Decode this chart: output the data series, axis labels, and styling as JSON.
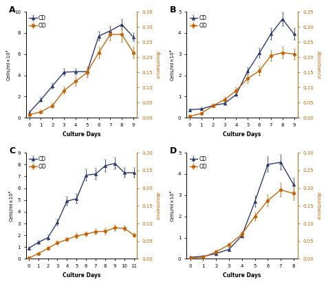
{
  "A": {
    "days": [
      0,
      1,
      2,
      3,
      4,
      5,
      6,
      7,
      8,
      9
    ],
    "cd": [
      0.5,
      1.7,
      3.0,
      4.3,
      4.35,
      4.35,
      7.7,
      8.2,
      8.8,
      7.6
    ],
    "cd_err": [
      0.15,
      0.2,
      0.25,
      0.3,
      0.3,
      0.3,
      0.4,
      0.45,
      0.5,
      0.4
    ],
    "od": [
      0.01,
      0.02,
      0.04,
      0.09,
      0.12,
      0.15,
      0.215,
      0.275,
      0.275,
      0.215
    ],
    "od_err": [
      0.005,
      0.005,
      0.008,
      0.012,
      0.015,
      0.018,
      0.02,
      0.02,
      0.025,
      0.02
    ],
    "ylim_cd": [
      0,
      10
    ],
    "yticks_cd": [
      0,
      2,
      4,
      6,
      8,
      10
    ],
    "ylim_od": [
      0,
      0.35
    ],
    "yticks_od": [
      0,
      0.05,
      0.1,
      0.15,
      0.2,
      0.25,
      0.3,
      0.35
    ],
    "xticks": [
      0,
      1,
      2,
      3,
      4,
      5,
      6,
      7,
      8,
      9
    ]
  },
  "B": {
    "days": [
      0,
      1,
      2,
      3,
      4,
      5,
      6,
      7,
      8,
      9
    ],
    "cd": [
      0.38,
      0.42,
      0.58,
      0.68,
      1.1,
      2.2,
      3.05,
      3.95,
      4.65,
      3.95
    ],
    "cd_err": [
      0.05,
      0.05,
      0.06,
      0.07,
      0.1,
      0.18,
      0.22,
      0.28,
      0.32,
      0.28
    ],
    "od": [
      0.005,
      0.015,
      0.04,
      0.06,
      0.09,
      0.13,
      0.155,
      0.205,
      0.215,
      0.21
    ],
    "od_err": [
      0.002,
      0.004,
      0.006,
      0.008,
      0.01,
      0.015,
      0.015,
      0.018,
      0.02,
      0.018
    ],
    "ylim_cd": [
      0,
      5
    ],
    "yticks_cd": [
      0,
      1,
      2,
      3,
      4,
      5
    ],
    "ylim_od": [
      0,
      0.35
    ],
    "yticks_od": [
      0,
      0.05,
      0.1,
      0.15,
      0.2,
      0.25,
      0.3,
      0.35
    ],
    "xticks": [
      0,
      1,
      2,
      3,
      4,
      5,
      6,
      7,
      8,
      9
    ]
  },
  "C": {
    "days": [
      0,
      1,
      2,
      3,
      4,
      5,
      6,
      7,
      8,
      9,
      10,
      11
    ],
    "cd": [
      0.9,
      1.4,
      1.8,
      3.1,
      4.9,
      5.1,
      7.1,
      7.2,
      7.9,
      8.1,
      7.3,
      7.3
    ],
    "cd_err": [
      0.1,
      0.15,
      0.2,
      0.28,
      0.38,
      0.38,
      0.48,
      0.48,
      0.5,
      0.52,
      0.42,
      0.42
    ],
    "od": [
      0.002,
      0.015,
      0.03,
      0.045,
      0.055,
      0.065,
      0.07,
      0.077,
      0.078,
      0.088,
      0.086,
      0.067
    ],
    "od_err": [
      0.001,
      0.004,
      0.005,
      0.006,
      0.006,
      0.007,
      0.007,
      0.008,
      0.009,
      0.009,
      0.008,
      0.006
    ],
    "ylim_cd": [
      0,
      9
    ],
    "yticks_cd": [
      0,
      1,
      2,
      3,
      4,
      5,
      6,
      7,
      8,
      9
    ],
    "ylim_od": [
      0,
      0.3
    ],
    "yticks_od": [
      0,
      0.05,
      0.1,
      0.15,
      0.2,
      0.25,
      0.3
    ],
    "xticks": [
      0,
      1,
      2,
      3,
      4,
      5,
      6,
      7,
      8,
      9,
      10,
      11
    ]
  },
  "D": {
    "days": [
      0,
      1,
      2,
      3,
      4,
      5,
      6,
      7,
      8
    ],
    "cd": [
      0.08,
      0.12,
      0.25,
      0.45,
      1.1,
      2.7,
      4.45,
      4.55,
      3.5
    ],
    "cd_err": [
      0.02,
      0.03,
      0.05,
      0.07,
      0.12,
      0.25,
      0.35,
      0.35,
      0.3
    ],
    "od": [
      0.002,
      0.005,
      0.02,
      0.04,
      0.07,
      0.12,
      0.165,
      0.195,
      0.185
    ],
    "od_err": [
      0.001,
      0.002,
      0.004,
      0.006,
      0.008,
      0.012,
      0.016,
      0.02,
      0.018
    ],
    "ylim_cd": [
      0,
      5
    ],
    "yticks_cd": [
      0,
      1,
      2,
      3,
      4,
      5
    ],
    "ylim_od": [
      0,
      0.3
    ],
    "yticks_od": [
      0,
      0.05,
      0.1,
      0.15,
      0.2,
      0.25,
      0.3
    ],
    "xticks": [
      0,
      1,
      2,
      3,
      4,
      5,
      6,
      7,
      8
    ]
  },
  "cd_color": "#2b3a6e",
  "od_color": "#c86400",
  "cd_label": "CD",
  "od_label": "OD",
  "xlabel": "Culture Days",
  "ylabel_left": "Cells/ml×10⁶",
  "ylabel_right": "Absorbance",
  "panel_labels": [
    "A",
    "B",
    "C",
    "D"
  ]
}
